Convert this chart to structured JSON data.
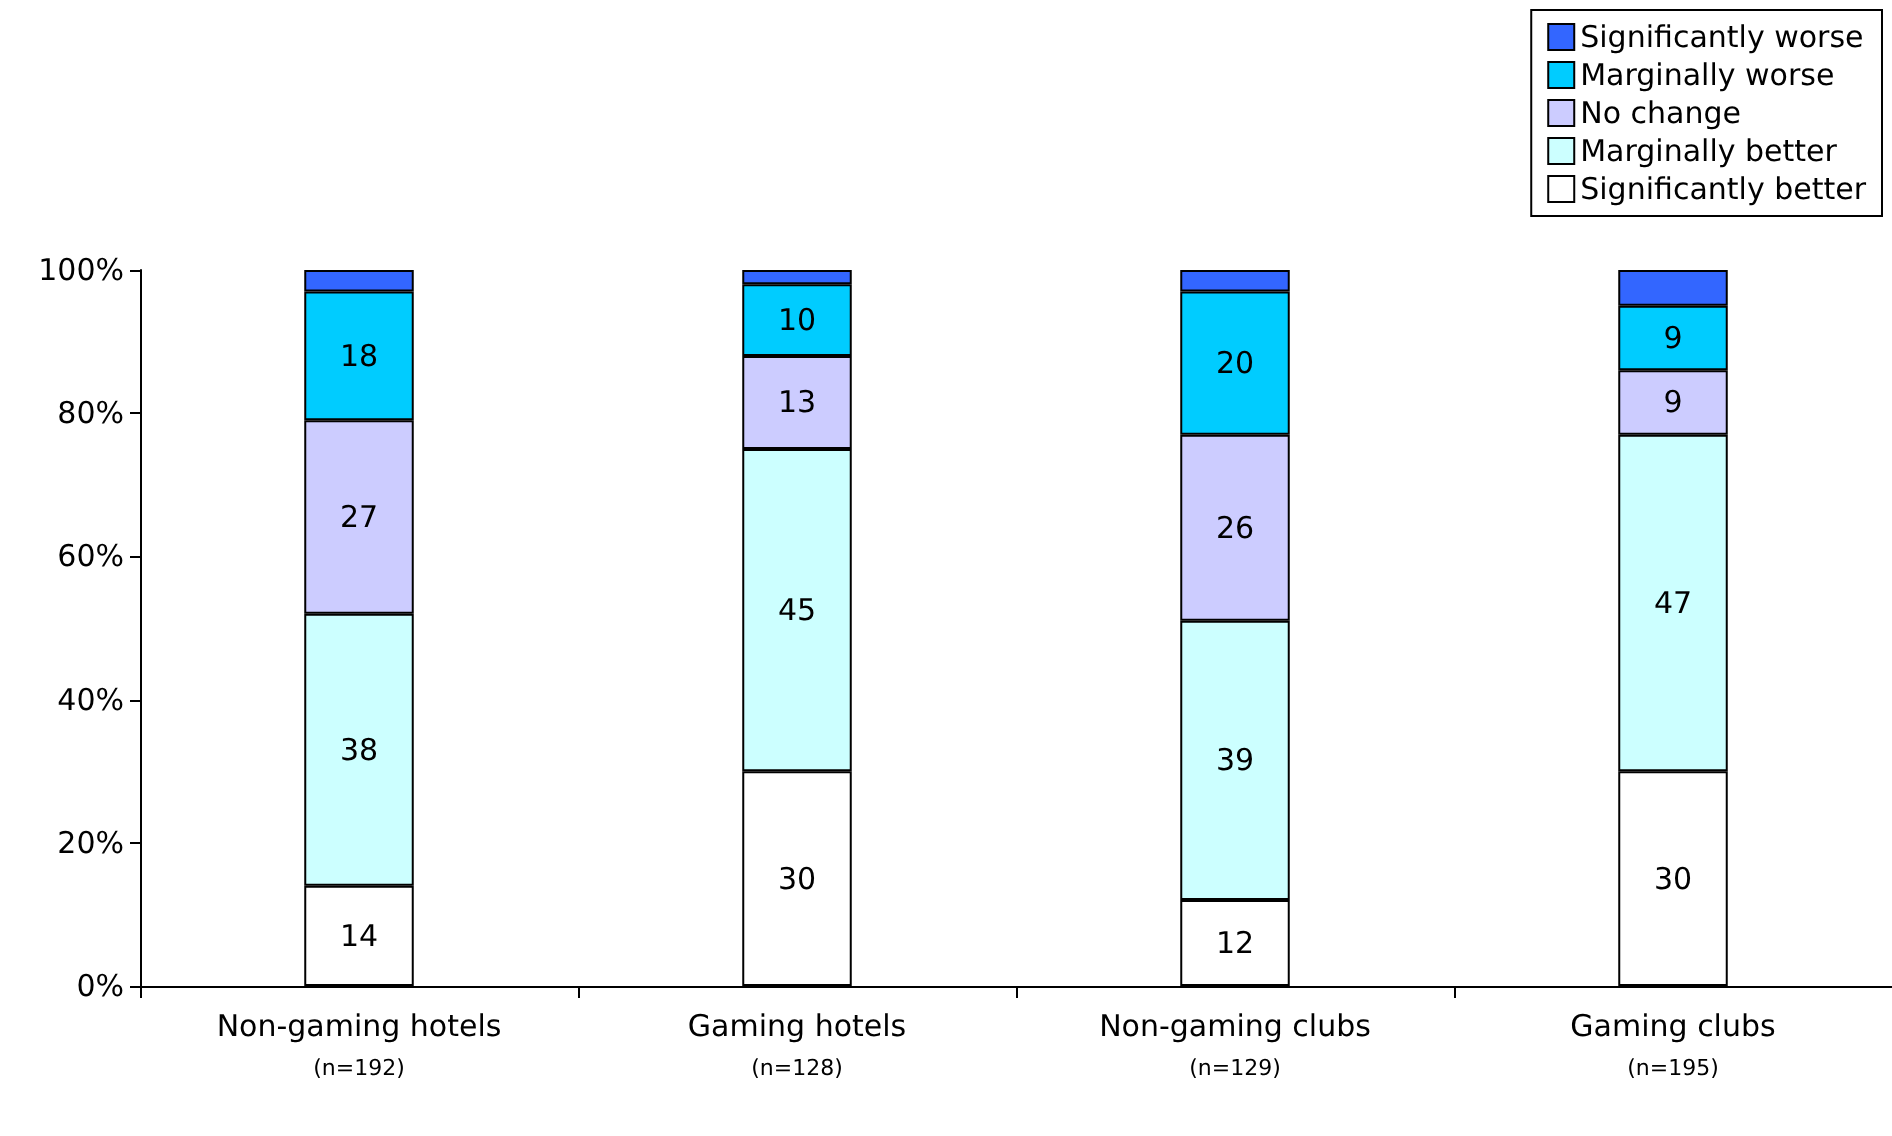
{
  "chart_data": {
    "type": "bar",
    "stacked": true,
    "categories": [
      "Non-gaming hotels\n(n=192)",
      "Gaming hotels\n(n=128)",
      "Non-gaming clubs\n(n=129)",
      "Gaming clubs\n(n=195)"
    ],
    "series": [
      {
        "name": "Significantly better",
        "color": "#ffffff",
        "values": [
          14,
          30,
          12,
          30
        ],
        "value_labels": [
          "14",
          "30",
          "12",
          "30"
        ]
      },
      {
        "name": "Marginally better",
        "color": "#ccffff",
        "values": [
          38,
          45,
          39,
          47
        ],
        "value_labels": [
          "38",
          "45",
          "39",
          "47"
        ]
      },
      {
        "name": "No change",
        "color": "#ccccff",
        "values": [
          27,
          13,
          26,
          9
        ],
        "value_labels": [
          "27",
          "13",
          "26",
          "9"
        ]
      },
      {
        "name": "Marginally worse",
        "color": "#00ccff",
        "values": [
          18,
          10,
          20,
          9
        ],
        "value_labels": [
          "18",
          "10",
          "20",
          "9"
        ]
      },
      {
        "name": "Significantly worse",
        "color": "#3366ff",
        "values": [
          3,
          2,
          3,
          5
        ],
        "value_labels": [
          null,
          null,
          null,
          null
        ]
      }
    ],
    "ylim": [
      0,
      100
    ],
    "yticks": [
      {
        "value": 0,
        "label": "0%"
      },
      {
        "value": 20,
        "label": "20%"
      },
      {
        "value": 40,
        "label": "40%"
      },
      {
        "value": 60,
        "label": "60%"
      },
      {
        "value": 80,
        "label": "80%"
      },
      {
        "value": 100,
        "label": "100%"
      }
    ],
    "grid": false,
    "legend": "top right"
  }
}
